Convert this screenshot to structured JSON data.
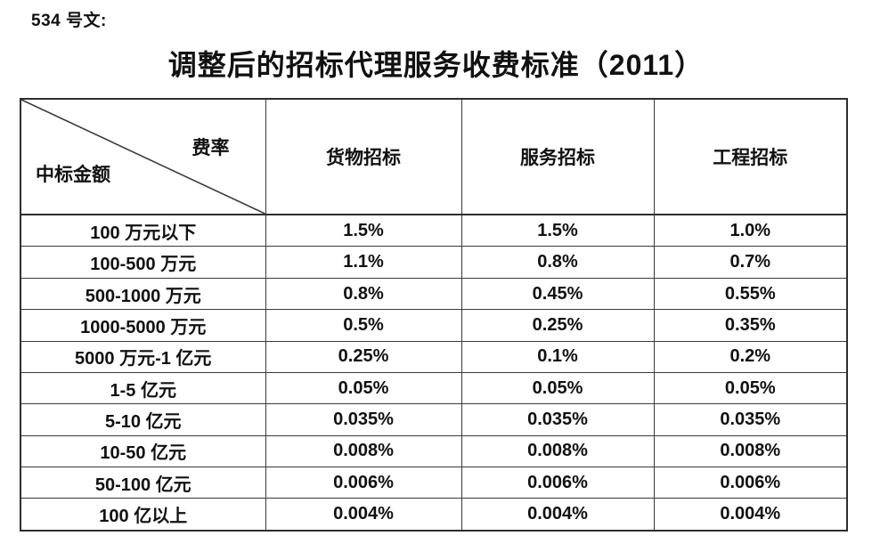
{
  "page": {
    "note": "534 号文:",
    "title": "调整后的招标代理服务收费标准（2011）"
  },
  "table": {
    "corner": {
      "top_right": "费率",
      "bottom_left": "中标金额"
    },
    "columns": [
      "货物招标",
      "服务招标",
      "工程招标"
    ],
    "rows": [
      {
        "label": "100 万元以下",
        "values": [
          "1.5%",
          "1.5%",
          "1.0%"
        ]
      },
      {
        "label": "100-500 万元",
        "values": [
          "1.1%",
          "0.8%",
          "0.7%"
        ]
      },
      {
        "label": "500-1000 万元",
        "values": [
          "0.8%",
          "0.45%",
          "0.55%"
        ]
      },
      {
        "label": "1000-5000 万元",
        "values": [
          "0.5%",
          "0.25%",
          "0.35%"
        ]
      },
      {
        "label": "5000 万元-1 亿元",
        "values": [
          "0.25%",
          "0.1%",
          "0.2%"
        ]
      },
      {
        "label": "1-5 亿元",
        "values": [
          "0.05%",
          "0.05%",
          "0.05%"
        ]
      },
      {
        "label": "5-10 亿元",
        "values": [
          "0.035%",
          "0.035%",
          "0.035%"
        ]
      },
      {
        "label": "10-50 亿元",
        "values": [
          "0.008%",
          "0.008%",
          "0.008%"
        ]
      },
      {
        "label": "50-100 亿元",
        "values": [
          "0.006%",
          "0.006%",
          "0.006%"
        ]
      },
      {
        "label": "100 亿以上",
        "values": [
          "0.004%",
          "0.004%",
          "0.004%"
        ]
      }
    ],
    "colors": {
      "border": "#3a3a3a",
      "outer_border": "#2e2e2e",
      "text": "#111111",
      "background": "#ffffff"
    }
  }
}
